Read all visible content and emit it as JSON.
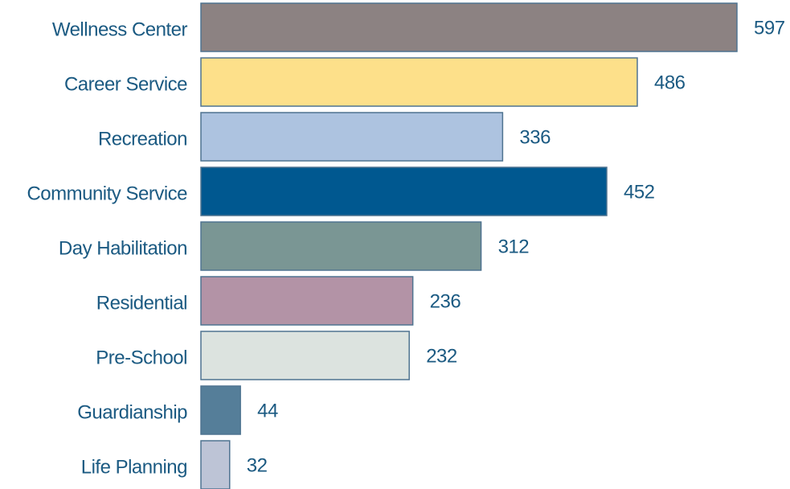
{
  "chart_data": {
    "type": "barh",
    "categories": [
      "Wellness Center",
      "Career Service",
      "Recreation",
      "Community Service",
      "Day Habilitation",
      "Residential",
      "Pre-School",
      "Guardianship",
      "Life Planning"
    ],
    "values": [
      597,
      486,
      336,
      452,
      312,
      236,
      232,
      44,
      32
    ],
    "colors": [
      "#8c8282",
      "#fde08a",
      "#adc3e0",
      "#005890",
      "#7a9694",
      "#b393a6",
      "#dce3df",
      "#557e99",
      "#bdc4d6"
    ]
  }
}
